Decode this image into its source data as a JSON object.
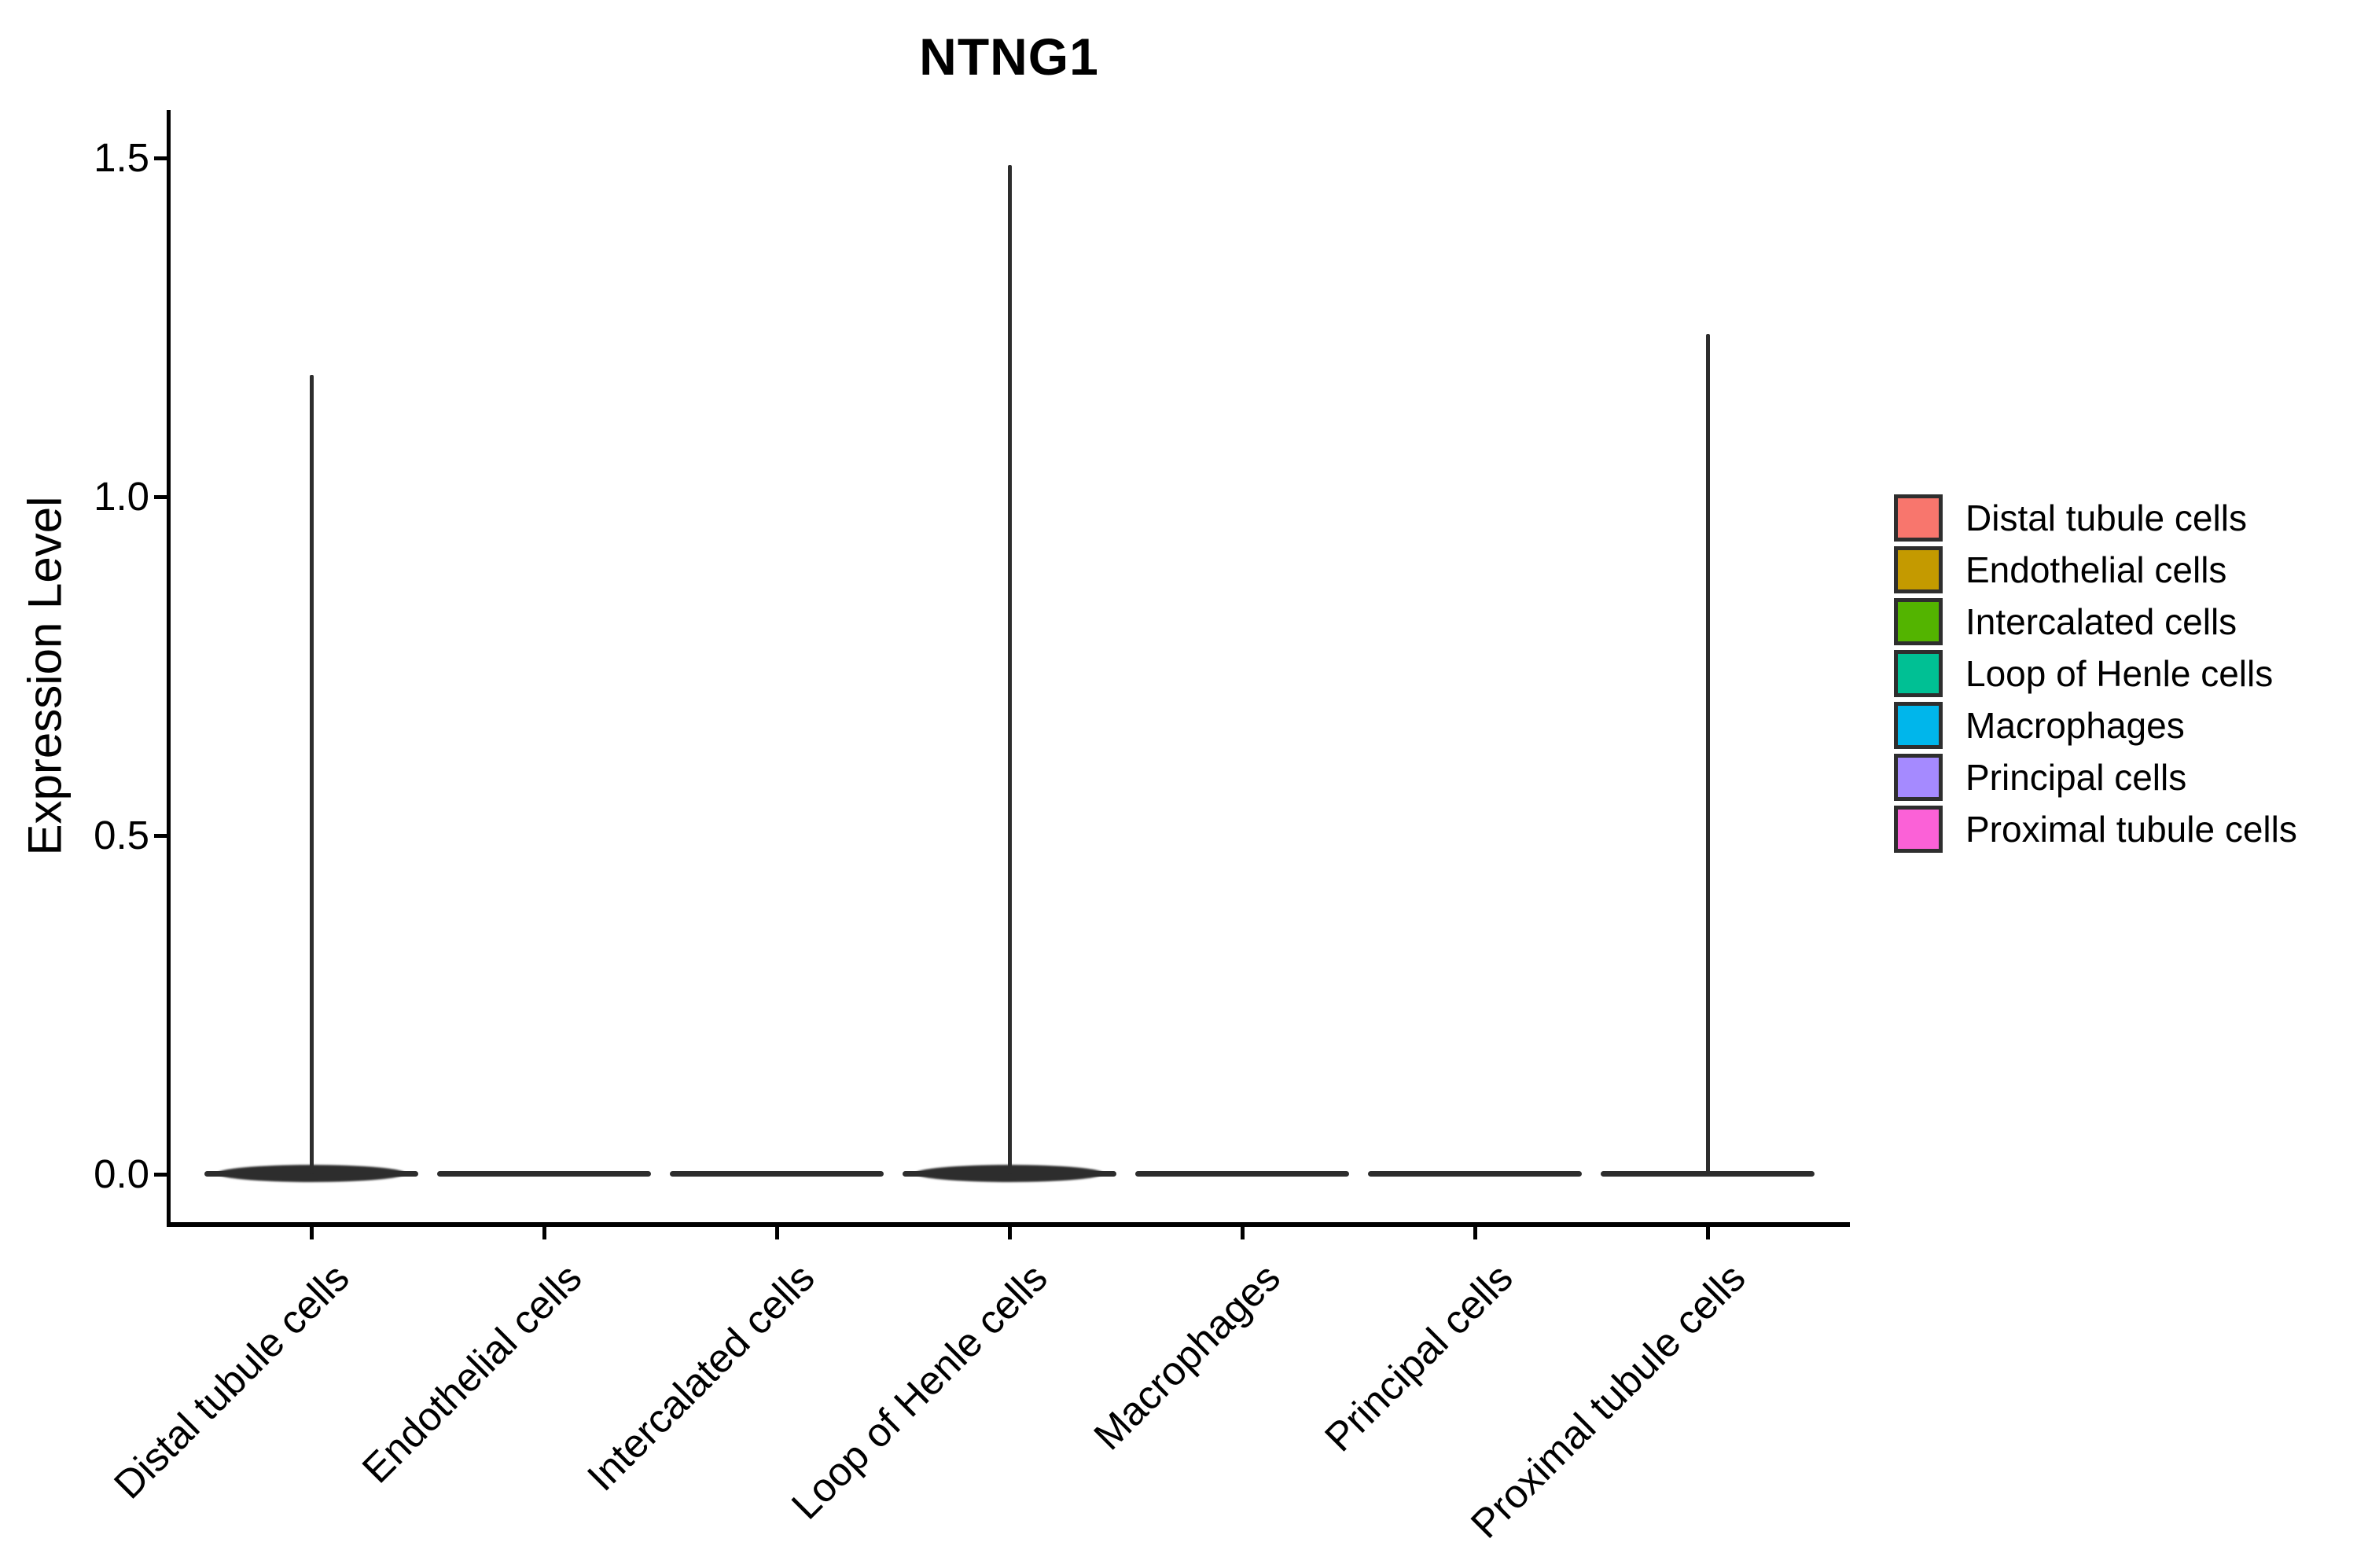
{
  "title": "NTNG1",
  "y_axis": {
    "label": "Expression Level",
    "ticks": [
      {
        "label": "0.0",
        "value": 0
      },
      {
        "label": "0.5",
        "value": 0.5
      },
      {
        "label": "1.0",
        "value": 1.0
      },
      {
        "label": "1.5",
        "value": 1.5
      }
    ]
  },
  "x_axis": {
    "categories": [
      "Distal tubule cells",
      "Endothelial cells",
      "Intercalated cells",
      "Loop of Henle cells",
      "Macrophages",
      "Principal cells",
      "Proximal tubule cells"
    ]
  },
  "legend": {
    "items": [
      {
        "label": "Distal tubule cells",
        "color": "#F8766D"
      },
      {
        "label": "Endothelial cells",
        "color": "#C49A00"
      },
      {
        "label": "Intercalated cells",
        "color": "#53B400"
      },
      {
        "label": "Loop of Henle cells",
        "color": "#00C094"
      },
      {
        "label": "Macrophages",
        "color": "#00B6EB"
      },
      {
        "label": "Principal cells",
        "color": "#A58AFF"
      },
      {
        "label": "Proximal tubule cells",
        "color": "#FB61D7"
      }
    ]
  },
  "chart_data": {
    "type": "violin",
    "title": "NTNG1",
    "ylabel": "Expression Level",
    "ylim": [
      -0.07,
      1.57
    ],
    "yticks": [
      0,
      0.5,
      1.0,
      1.5
    ],
    "grid": false,
    "legend_position": "right",
    "categories": [
      "Distal tubule cells",
      "Endothelial cells",
      "Intercalated cells",
      "Loop of Henle cells",
      "Macrophages",
      "Principal cells",
      "Proximal tubule cells"
    ],
    "violins": [
      {
        "category": "Distal tubule cells",
        "color": "#F8766D",
        "density_peak_at": 0,
        "max_expression": 1.18,
        "baseline_bulge": true
      },
      {
        "category": "Endothelial cells",
        "color": "#C49A00",
        "density_peak_at": 0,
        "max_expression": 0,
        "baseline_bulge": false
      },
      {
        "category": "Intercalated cells",
        "color": "#53B400",
        "density_peak_at": 0,
        "max_expression": 0,
        "baseline_bulge": false
      },
      {
        "category": "Loop of Henle cells",
        "color": "#00C094",
        "density_peak_at": 0,
        "max_expression": 1.49,
        "baseline_bulge": true
      },
      {
        "category": "Macrophages",
        "color": "#00B6EB",
        "density_peak_at": 0,
        "max_expression": 0,
        "baseline_bulge": false
      },
      {
        "category": "Principal cells",
        "color": "#A58AFF",
        "density_peak_at": 0,
        "max_expression": 0,
        "baseline_bulge": false
      },
      {
        "category": "Proximal tubule cells",
        "color": "#FB61D7",
        "density_peak_at": 0,
        "max_expression": 1.24,
        "baseline_bulge": false
      }
    ]
  }
}
